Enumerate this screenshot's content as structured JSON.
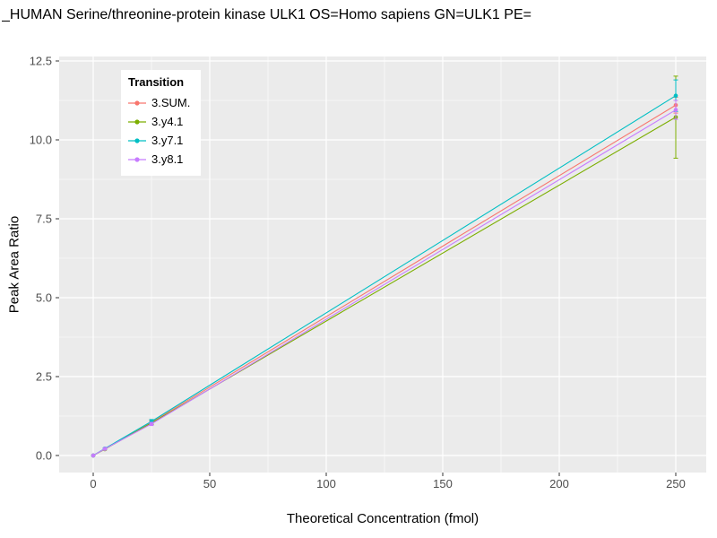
{
  "chart_data": {
    "type": "line",
    "title": "_HUMAN Serine/threonine-protein kinase ULK1 OS=Homo sapiens GN=ULK1 PE=",
    "xlabel": "Theoretical Concentration (fmol)",
    "ylabel": "Peak Area Ratio",
    "legend_title": "Transition",
    "legend_position": "top-left-inside",
    "grid": true,
    "panel_bg": "#EBEBEB",
    "grid_color": "#FFFFFF",
    "tick_label_color": "#4D4D4D",
    "xlim": [
      0,
      250
    ],
    "ylim": [
      0,
      12.5
    ],
    "xticks": [
      0,
      50,
      100,
      150,
      200,
      250
    ],
    "xtick_labels": [
      "0",
      "50",
      "100",
      "150",
      "200",
      "250"
    ],
    "yticks": [
      0,
      2.5,
      5,
      7.5,
      10,
      12.5
    ],
    "ytick_labels": [
      "0.0",
      "2.5",
      "5.0",
      "7.5",
      "10.0",
      "12.5"
    ],
    "x": [
      0,
      5,
      25,
      250
    ],
    "series": [
      {
        "name": "3.SUM.",
        "color": "#F8766D",
        "values": [
          0.0,
          0.21,
          1.05,
          11.1
        ],
        "yerr": [
          0,
          0.02,
          0.06,
          0.25
        ]
      },
      {
        "name": "3.y4.1",
        "color": "#7CAE00",
        "values": [
          0.0,
          0.2,
          1.03,
          10.72
        ],
        "yerr": [
          0,
          0.02,
          0.05,
          1.3
        ]
      },
      {
        "name": "3.y7.1",
        "color": "#00BFC4",
        "values": [
          0.0,
          0.22,
          1.08,
          11.4
        ],
        "yerr": [
          0,
          0.02,
          0.06,
          0.5
        ]
      },
      {
        "name": "3.y8.1",
        "color": "#C77CFF",
        "values": [
          0.0,
          0.21,
          1.0,
          10.95
        ],
        "yerr": [
          0,
          0.02,
          0.05,
          0.3
        ]
      }
    ]
  }
}
